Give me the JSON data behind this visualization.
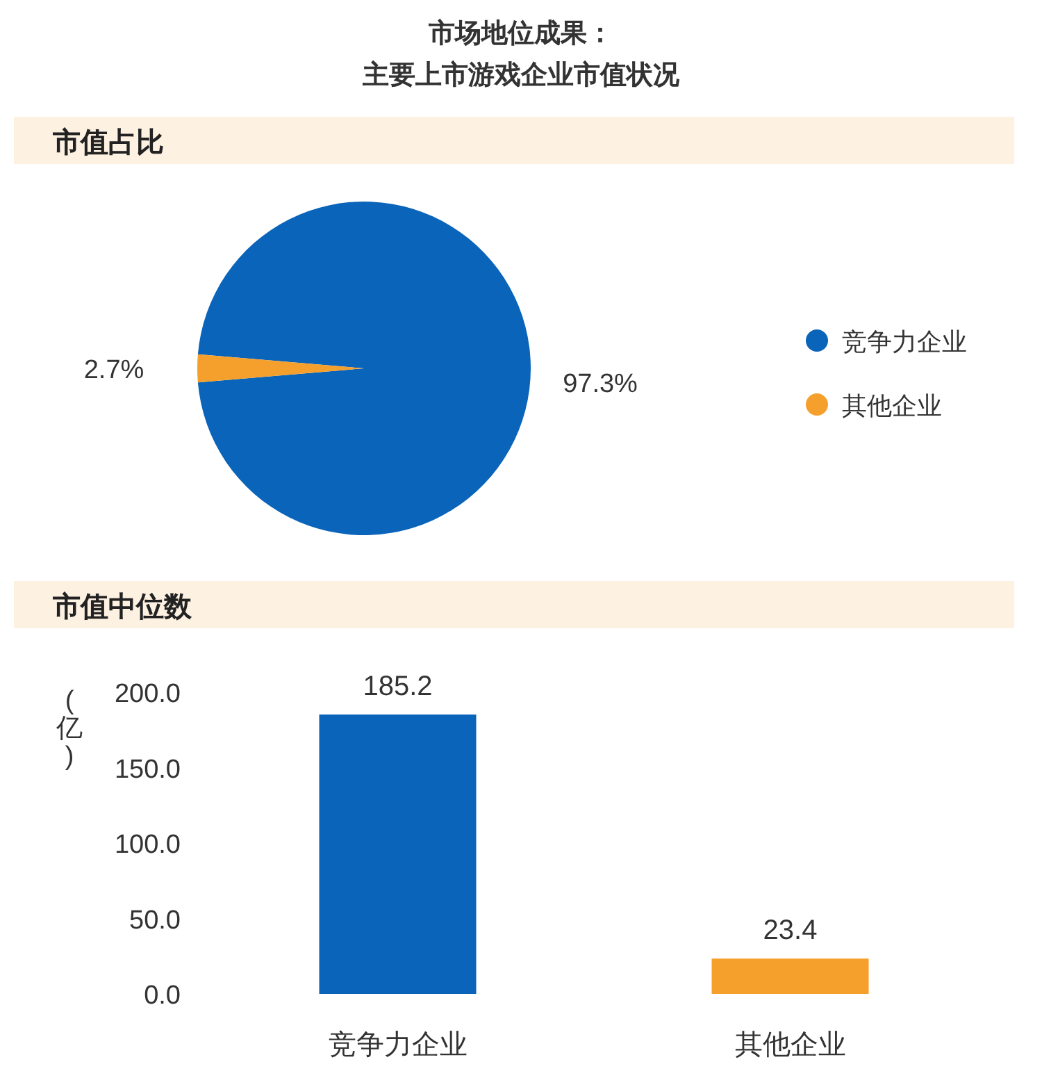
{
  "chart_data": [
    {
      "type": "pie",
      "title": "市场地位成果：主要上市游戏企业市值状况",
      "subtitle": "市值占比",
      "categories": [
        "竞争力企业",
        "其他企业"
      ],
      "values": [
        97.3,
        2.7
      ],
      "colors": [
        "#0a64b9",
        "#f5a02d"
      ],
      "value_labels": [
        "97.3%",
        "2.7%"
      ],
      "legend": "right"
    },
    {
      "type": "bar",
      "title": "市值中位数",
      "ylabel": "(亿)",
      "categories": [
        "竞争力企业",
        "其他企业"
      ],
      "values": [
        185.2,
        23.4
      ],
      "colors": [
        "#0a64b9",
        "#f5a02d"
      ],
      "ylim": [
        0,
        200
      ],
      "yticks": [
        {
          "value": 0,
          "label": "0.0"
        },
        {
          "value": 50,
          "label": "50.0"
        },
        {
          "value": 100,
          "label": "100.0"
        },
        {
          "value": 150,
          "label": "150.0"
        },
        {
          "value": 200,
          "label": "200.0"
        }
      ],
      "data_labels": true
    }
  ]
}
